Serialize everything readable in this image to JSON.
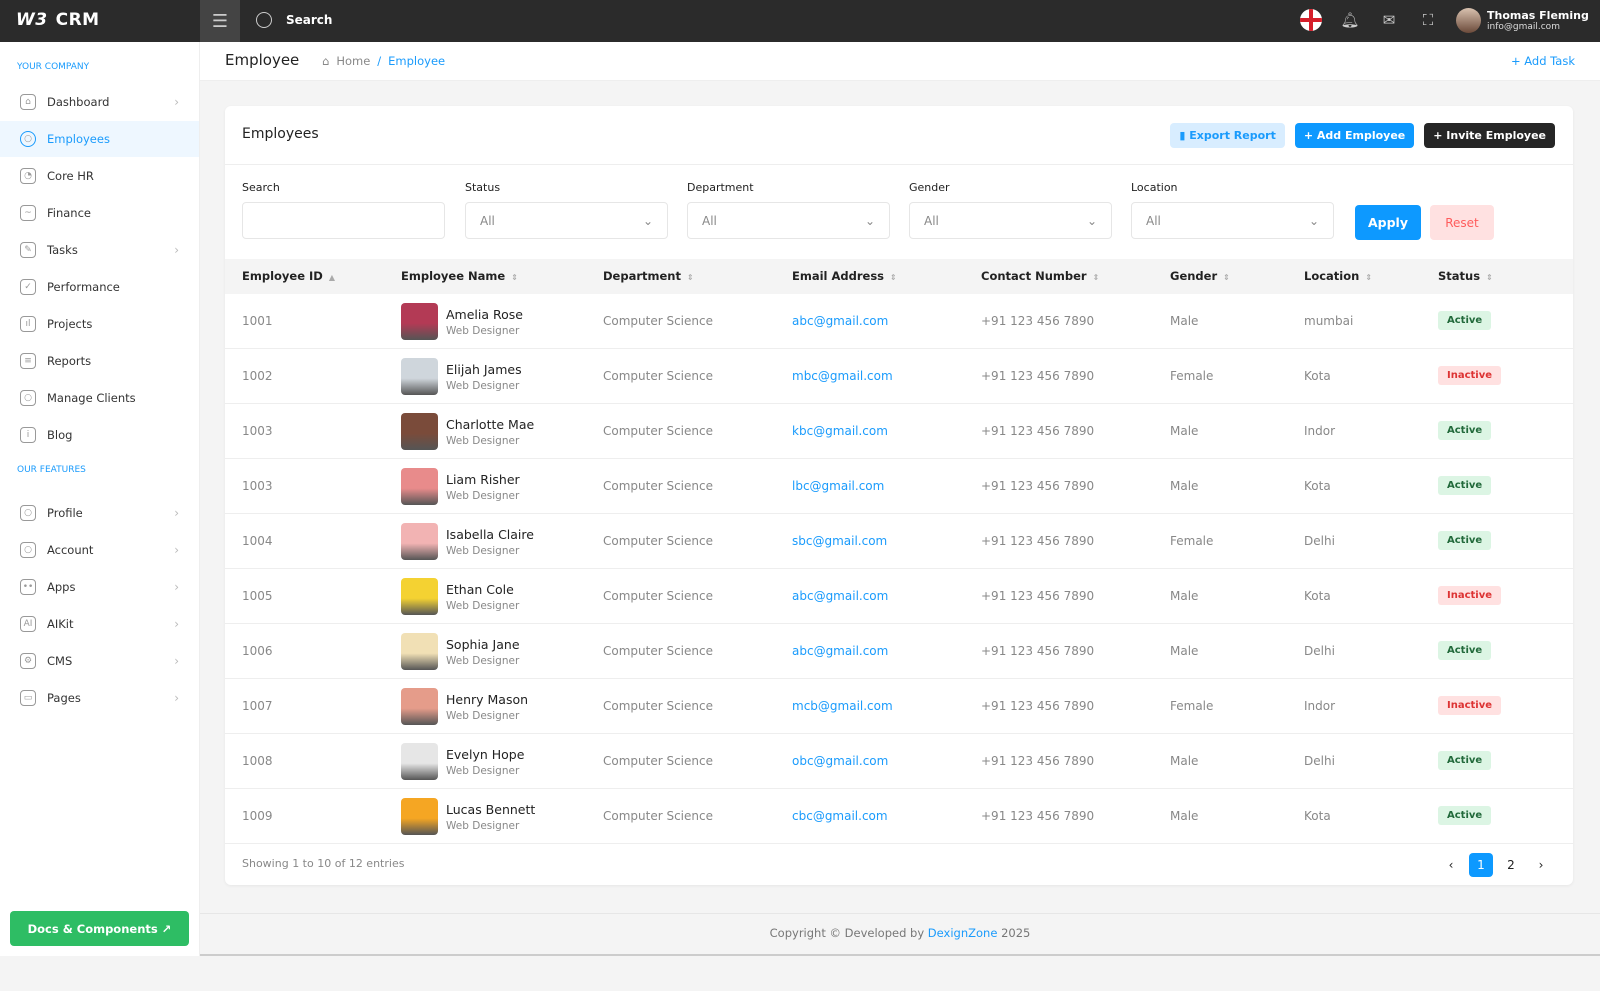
{
  "app": {
    "logo_mark": "W3",
    "name": "CRM",
    "search_label": "Search"
  },
  "user": {
    "name": "Thomas Fleming",
    "email": "info@gmail.com"
  },
  "sidebar": {
    "section1": "YOUR COMPANY",
    "section2": "OUR FEATURES",
    "items": [
      {
        "label": "Dashboard",
        "icon": "home-icon",
        "chev": true
      },
      {
        "label": "Employees",
        "icon": "user-icon",
        "active": true
      },
      {
        "label": "Core HR",
        "icon": "pie-chart-icon"
      },
      {
        "label": "Finance",
        "icon": "chart-icon"
      },
      {
        "label": "Tasks",
        "icon": "edit-icon",
        "chev": true
      },
      {
        "label": "Performance",
        "icon": "check-icon"
      },
      {
        "label": "Projects",
        "icon": "bar-chart-icon"
      },
      {
        "label": "Reports",
        "icon": "document-icon"
      },
      {
        "label": "Manage Clients",
        "icon": "users-icon"
      },
      {
        "label": "Blog",
        "icon": "info-icon"
      }
    ],
    "features": [
      {
        "label": "Profile",
        "icon": "user-icon"
      },
      {
        "label": "Account",
        "icon": "user-icon"
      },
      {
        "label": "Apps",
        "icon": "gamepad-icon"
      },
      {
        "label": "AIKit",
        "icon": "ai-icon"
      },
      {
        "label": "CMS",
        "icon": "gear-icon"
      },
      {
        "label": "Pages",
        "icon": "ticket-icon"
      }
    ],
    "docs_button": "Docs & Components ↗"
  },
  "page": {
    "title": "Employee",
    "breadcrumb": [
      "Home",
      "Employee"
    ],
    "add_task": "+ Add Task"
  },
  "card": {
    "title": "Employees",
    "export": "Export Report",
    "add": "+ Add Employee",
    "invite": "+ Invite Employee"
  },
  "filters": {
    "search_label": "Search",
    "search_value": "",
    "selects": [
      {
        "label": "Status",
        "value": "All"
      },
      {
        "label": "Department",
        "value": "All"
      },
      {
        "label": "Gender",
        "value": "All"
      },
      {
        "label": "Location",
        "value": "All"
      }
    ],
    "apply": "Apply",
    "reset": "Reset"
  },
  "table": {
    "columns": [
      "Employee ID",
      "Employee Name",
      "Department",
      "Email Address",
      "Contact Number",
      "Gender",
      "Location",
      "Status"
    ],
    "rows": [
      {
        "id": "1001",
        "name": "Amelia Rose",
        "role": "Web Designer",
        "dept": "Computer Science",
        "email": "abc@gmail.com",
        "phone": "+91 123 456 7890",
        "gender": "Male",
        "location": "mumbai",
        "status": "Active"
      },
      {
        "id": "1002",
        "name": "Elijah James",
        "role": "Web Designer",
        "dept": "Computer Science",
        "email": "mbc@gmail.com",
        "phone": "+91 123 456 7890",
        "gender": "Female",
        "location": "Kota",
        "status": "Inactive"
      },
      {
        "id": "1003",
        "name": "Charlotte Mae",
        "role": "Web Designer",
        "dept": "Computer Science",
        "email": "kbc@gmail.com",
        "phone": "+91 123 456 7890",
        "gender": "Male",
        "location": "Indor",
        "status": "Active"
      },
      {
        "id": "1003",
        "name": "Liam Risher",
        "role": "Web Designer",
        "dept": "Computer Science",
        "email": "lbc@gmail.com",
        "phone": "+91 123 456 7890",
        "gender": "Male",
        "location": "Kota",
        "status": "Active"
      },
      {
        "id": "1004",
        "name": "Isabella Claire",
        "role": "Web Designer",
        "dept": "Computer Science",
        "email": "sbc@gmail.com",
        "phone": "+91 123 456 7890",
        "gender": "Female",
        "location": "Delhi",
        "status": "Active"
      },
      {
        "id": "1005",
        "name": "Ethan Cole",
        "role": "Web Designer",
        "dept": "Computer Science",
        "email": "abc@gmail.com",
        "phone": "+91 123 456 7890",
        "gender": "Male",
        "location": "Kota",
        "status": "Inactive"
      },
      {
        "id": "1006",
        "name": "Sophia Jane",
        "role": "Web Designer",
        "dept": "Computer Science",
        "email": "abc@gmail.com",
        "phone": "+91 123 456 7890",
        "gender": "Male",
        "location": "Delhi",
        "status": "Active"
      },
      {
        "id": "1007",
        "name": "Henry Mason",
        "role": "Web Designer",
        "dept": "Computer Science",
        "email": "mcb@gmail.com",
        "phone": "+91 123 456 7890",
        "gender": "Female",
        "location": "Indor",
        "status": "Inactive"
      },
      {
        "id": "1008",
        "name": "Evelyn Hope",
        "role": "Web Designer",
        "dept": "Computer Science",
        "email": "obc@gmail.com",
        "phone": "+91 123 456 7890",
        "gender": "Male",
        "location": "Delhi",
        "status": "Active"
      },
      {
        "id": "1009",
        "name": "Lucas Bennett",
        "role": "Web Designer",
        "dept": "Computer Science",
        "email": "cbc@gmail.com",
        "phone": "+91 123 456 7890",
        "gender": "Male",
        "location": "Kota",
        "status": "Active"
      }
    ]
  },
  "pagination": {
    "summary": "Showing 1 to 10 of 12 entries",
    "pages": [
      "1",
      "2"
    ],
    "current": "1"
  },
  "footer": {
    "prefix": "Copyright © Developed by",
    "brand": "DexignZone",
    "year": "2025"
  },
  "colors": {
    "accent": "#0d99ff",
    "active_bg": "#dcf5e4",
    "inactive_bg": "#ffe1e1",
    "topbar": "#2b2b2b"
  }
}
